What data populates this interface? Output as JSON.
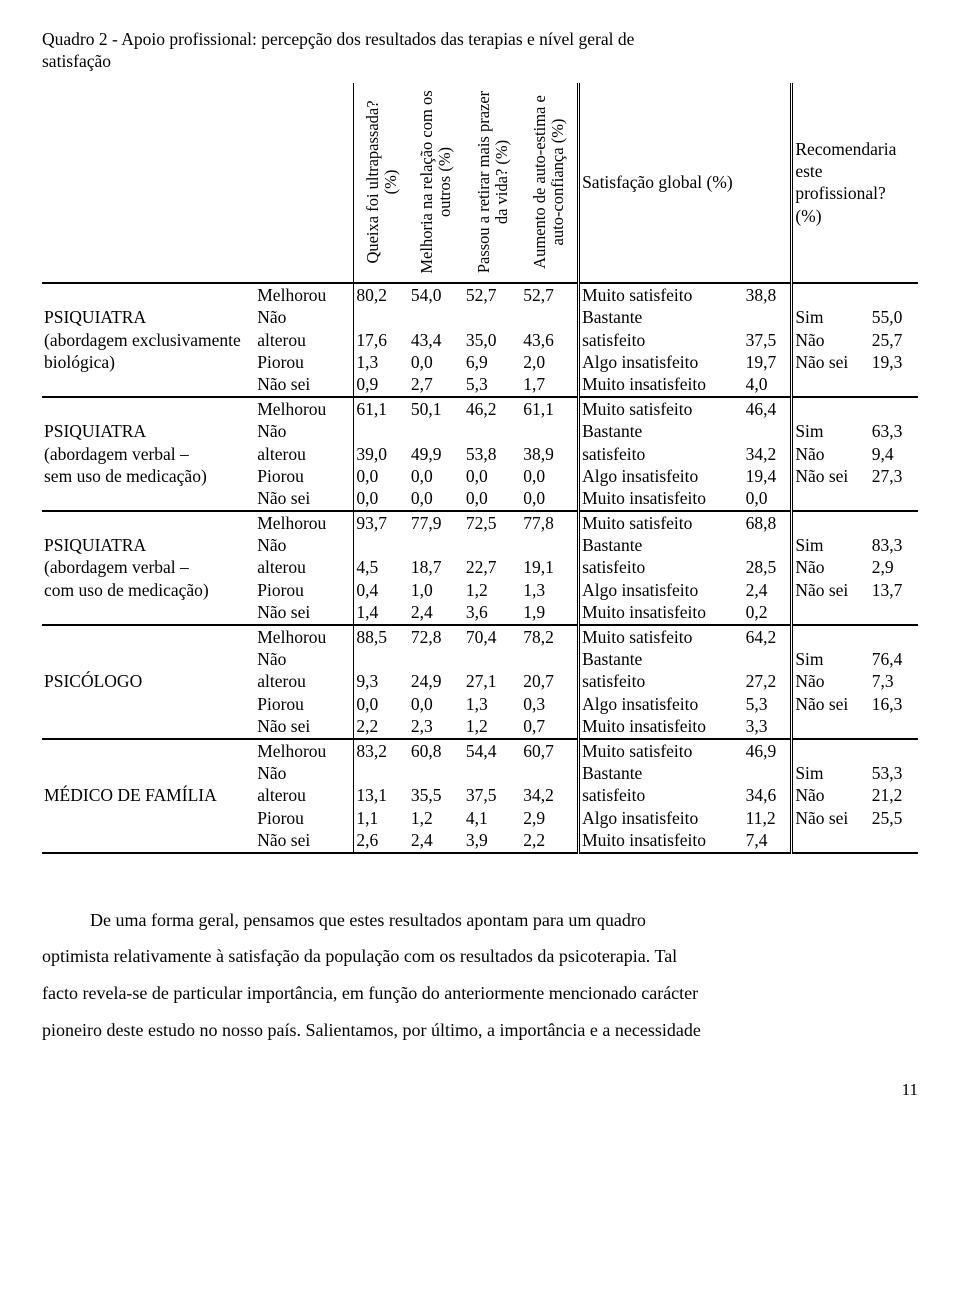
{
  "title_line1": "Quadro 2 - Apoio profissional: percepção dos resultados das terapias e nível geral de",
  "title_line2": "satisfação",
  "headers": {
    "rot1a": "Queixa foi ultrapassada?",
    "rot1b": "(%)",
    "rot2a": "Melhoria na relação com os",
    "rot2b": "outros (%)",
    "rot3a": "Passou a retirar mais prazer",
    "rot3b": "da vida? (%)",
    "rot4a": "Aumento de auto-estima e",
    "rot4b": "auto-confiança (%)",
    "sat": "Satisfação global (%)",
    "rec1": "Recomendaria",
    "rec2": "este",
    "rec3": "profissional?",
    "rec4": "(%)"
  },
  "state_labels": [
    "Melhorou",
    "Não",
    "alterou",
    "Piorou",
    "Não sei"
  ],
  "sat_labels": [
    "Muito satisfeito",
    "Bastante",
    "satisfeito",
    "Algo insatisfeito",
    "Muito insatisfeito"
  ],
  "rec_labels": [
    "Sim",
    "Não",
    "Não sei"
  ],
  "groups": [
    {
      "label_lines": [
        "PSIQUIATRA",
        "(abordagem exclusivamente",
        "biológica)"
      ],
      "q": [
        "80,2",
        "",
        "17,6",
        "1,3",
        "0,9"
      ],
      "m": [
        "54,0",
        "",
        "43,4",
        "0,0",
        "2,7"
      ],
      "p": [
        "52,7",
        "",
        "35,0",
        "6,9",
        "5,3"
      ],
      "a": [
        "52,7",
        "",
        "43,6",
        "2,0",
        "1,7"
      ],
      "sat": [
        "38,8",
        "",
        "37,5",
        "19,7",
        "4,0"
      ],
      "rec": [
        "55,0",
        "25,7",
        "19,3"
      ]
    },
    {
      "label_lines": [
        "PSIQUIATRA",
        " (abordagem verbal –",
        " sem uso de medicação)"
      ],
      "q": [
        "61,1",
        "",
        "39,0",
        "0,0",
        "0,0"
      ],
      "m": [
        "50,1",
        "",
        "49,9",
        "0,0",
        "0,0"
      ],
      "p": [
        "46,2",
        "",
        "53,8",
        "0,0",
        "0,0"
      ],
      "a": [
        "61,1",
        "",
        "38,9",
        "0,0",
        "0,0"
      ],
      "sat": [
        "46,4",
        "",
        "34,2",
        "19,4",
        "0,0"
      ],
      "rec": [
        "63,3",
        "9,4",
        "27,3"
      ]
    },
    {
      "label_lines": [
        "PSIQUIATRA",
        " (abordagem verbal –",
        " com uso de medicação)"
      ],
      "q": [
        "93,7",
        "",
        "4,5",
        "0,4",
        "1,4"
      ],
      "m": [
        "77,9",
        "",
        "18,7",
        "1,0",
        "2,4"
      ],
      "p": [
        "72,5",
        "",
        "22,7",
        "1,2",
        "3,6"
      ],
      "a": [
        "77,8",
        "",
        "19,1",
        "1,3",
        "1,9"
      ],
      "sat": [
        "68,8",
        "",
        "28,5",
        "2,4",
        "0,2"
      ],
      "rec": [
        "83,3",
        "2,9",
        "13,7"
      ]
    },
    {
      "label_lines": [
        "PSICÓLOGO"
      ],
      "q": [
        "88,5",
        "",
        "9,3",
        "0,0",
        "2,2"
      ],
      "m": [
        "72,8",
        "",
        "24,9",
        "0,0",
        "2,3"
      ],
      "p": [
        "70,4",
        "",
        "27,1",
        "1,3",
        "1,2"
      ],
      "a": [
        "78,2",
        "",
        "20,7",
        "0,3",
        "0,7"
      ],
      "sat": [
        "64,2",
        "",
        "27,2",
        "5,3",
        "3,3"
      ],
      "rec": [
        "76,4",
        "7,3",
        "16,3"
      ]
    },
    {
      "label_lines": [
        "MÉDICO DE FAMÍLIA"
      ],
      "q": [
        "83,2",
        "",
        "13,1",
        "1,1",
        "2,6"
      ],
      "m": [
        "60,8",
        "",
        "35,5",
        "1,2",
        "2,4"
      ],
      "p": [
        "54,4",
        "",
        "37,5",
        "4,1",
        "3,9"
      ],
      "a": [
        "60,7",
        "",
        "34,2",
        "2,9",
        "2,2"
      ],
      "sat": [
        "46,9",
        "",
        "34,6",
        "11,2",
        " 7,4"
      ],
      "rec": [
        "53,3",
        "21,2",
        "25,5"
      ]
    }
  ],
  "paragraph": {
    "l1": "De uma forma geral, pensamos que estes resultados apontam para um quadro",
    "l2": "optimista relativamente à satisfação da população com os resultados da psicoterapia. Tal",
    "l3": "facto revela-se de particular importância, em função do anteriormente mencionado carácter",
    "l4": "pioneiro deste estudo no nosso país.  Salientamos, por último, a importância e a necessidade"
  },
  "page_num": "11"
}
